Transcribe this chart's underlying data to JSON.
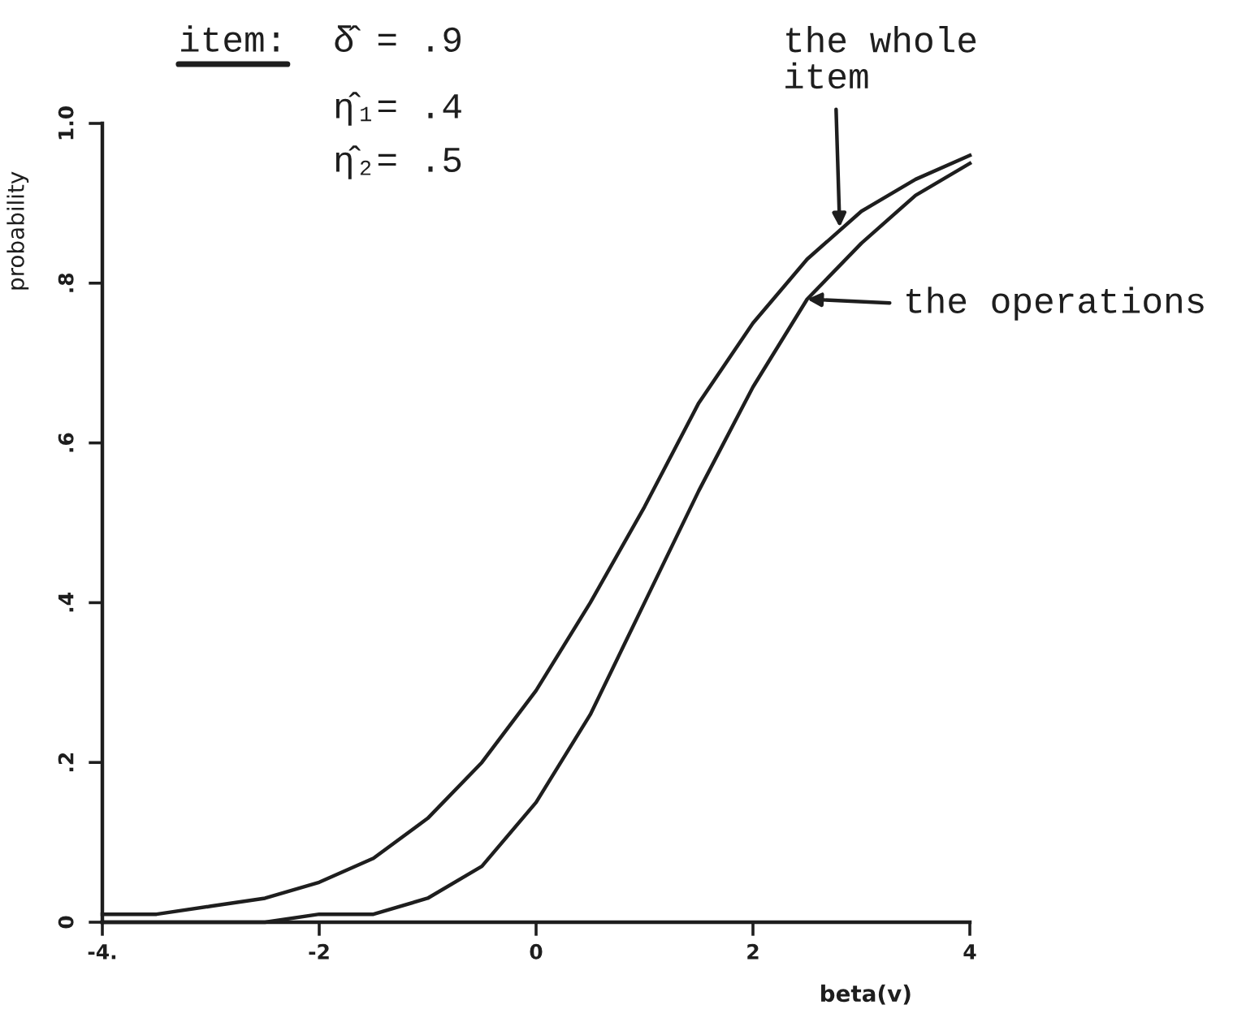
{
  "chart_data": {
    "type": "line",
    "xlabel": "beta(v)",
    "ylabel": "probability",
    "annotations": [
      "item:",
      "δ̂ = .9",
      "η̂₁= .4",
      "η̂₂= .5",
      {
        "text": "the whole\nitem",
        "x": 2.8,
        "y": 0.87
      },
      {
        "text": "the operations",
        "x": 2.5,
        "y": 0.78
      }
    ],
    "x": [
      -4,
      -3.5,
      -3,
      -2.5,
      -2,
      -1.5,
      -1,
      -0.5,
      0,
      0.5,
      1,
      1.5,
      2,
      2.5,
      3,
      3.5,
      4
    ],
    "series": [
      {
        "color": "#1e1e1e",
        "values": [
          0.01,
          0.01,
          0.02,
          0.03,
          0.05,
          0.08,
          0.13,
          0.2,
          0.29,
          0.4,
          0.52,
          0.65,
          0.75,
          0.83,
          0.89,
          0.93,
          0.96
        ]
      },
      {
        "color": "#1e1e1e",
        "values": [
          0.0,
          0.0,
          0.0,
          0.0,
          0.01,
          0.01,
          0.03,
          0.07,
          0.15,
          0.26,
          0.4,
          0.54,
          0.67,
          0.78,
          0.85,
          0.91,
          0.95
        ]
      }
    ],
    "xlim": [
      -4,
      4
    ],
    "ylim": [
      0,
      1
    ],
    "xticks": [
      {
        "value": -4,
        "label": "-4."
      },
      -2,
      0,
      2,
      4
    ],
    "yticks": [
      0,
      {
        "value": 0.2,
        "label": ".2"
      },
      {
        "value": 0.4,
        "label": ".4"
      },
      {
        "value": 0.6,
        "label": ".6"
      },
      {
        "value": 0.8,
        "label": ".8"
      },
      {
        "value": 1,
        "label": "1.0"
      }
    ],
    "grid": false,
    "line_style": "solid"
  }
}
